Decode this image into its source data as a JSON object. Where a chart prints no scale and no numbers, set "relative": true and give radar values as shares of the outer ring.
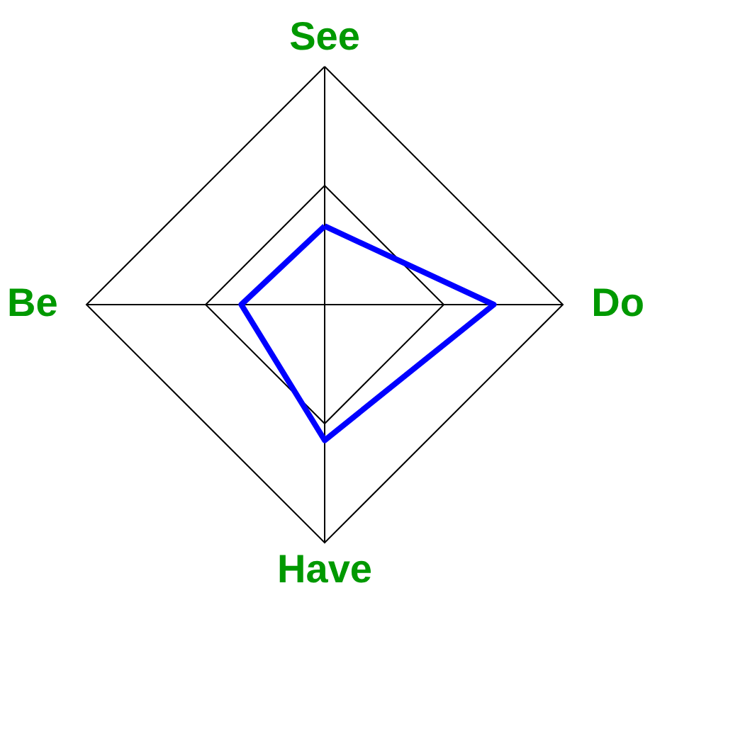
{
  "chart_data": {
    "type": "radar",
    "relative": true,
    "categories": [
      "See",
      "Do",
      "Have",
      "Be"
    ],
    "series": [
      {
        "color": "#0000ff",
        "values": [
          0.33,
          0.71,
          0.57,
          0.35
        ]
      }
    ],
    "grid": true
  }
}
